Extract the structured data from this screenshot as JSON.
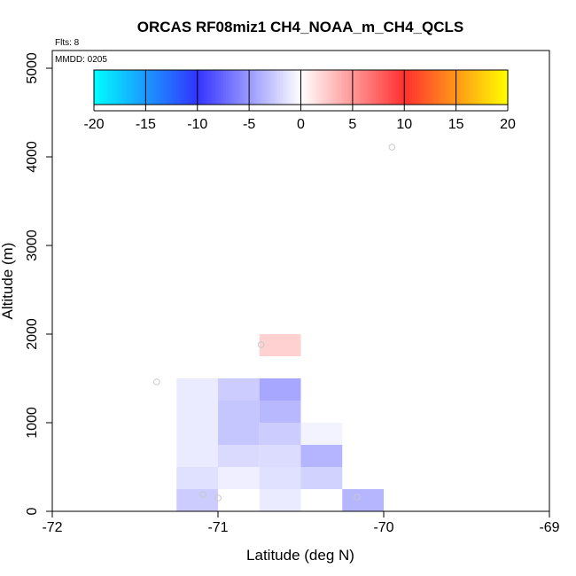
{
  "chart_data": {
    "type": "heatmap",
    "title": "ORCAS RF08miz1 CH4_NOAA_m_CH4_QCLS",
    "flights_label": "Flts: 8",
    "date_label": "MMDD: 0205",
    "xlabel": "Latitude (deg N)",
    "ylabel": "Altitude (m)",
    "xlim": [
      -72,
      -69
    ],
    "ylim": [
      0,
      5200
    ],
    "xticks": [
      -72,
      -71,
      -70,
      -69
    ],
    "xtick_labels": [
      "-72",
      "-71",
      "-70",
      "-69"
    ],
    "yticks": [
      0,
      1000,
      2000,
      3000,
      4000,
      5000
    ],
    "ytick_labels": [
      "0",
      "1000",
      "2000",
      "3000",
      "4000",
      "5000"
    ],
    "colorbar": {
      "range": [
        -20,
        20
      ],
      "ticks": [
        -20,
        -15,
        -10,
        -5,
        0,
        5,
        10,
        15,
        20
      ],
      "tick_labels": [
        "-20",
        "-15",
        "-10",
        "-5",
        "0",
        "5",
        "10",
        "15",
        "20"
      ]
    },
    "cells": [
      {
        "x0": -71.25,
        "x1": -71.0,
        "y0": 0,
        "y1": 250,
        "value": -2.5
      },
      {
        "x0": -71.25,
        "x1": -71.0,
        "y0": 250,
        "y1": 500,
        "value": -1.5
      },
      {
        "x0": -71.25,
        "x1": -71.0,
        "y0": 500,
        "y1": 1000,
        "value": -1.0
      },
      {
        "x0": -71.25,
        "x1": -71.0,
        "y0": 1000,
        "y1": 1500,
        "value": -1.0
      },
      {
        "x0": -71.0,
        "x1": -70.75,
        "y0": 0,
        "y1": 250,
        "value": 0.0
      },
      {
        "x0": -71.0,
        "x1": -70.75,
        "y0": 250,
        "y1": 500,
        "value": -0.8
      },
      {
        "x0": -71.0,
        "x1": -70.75,
        "y0": 500,
        "y1": 750,
        "value": -1.8
      },
      {
        "x0": -71.0,
        "x1": -70.75,
        "y0": 750,
        "y1": 1250,
        "value": -2.8
      },
      {
        "x0": -71.0,
        "x1": -70.75,
        "y0": 1250,
        "y1": 1500,
        "value": -2.5
      },
      {
        "x0": -70.75,
        "x1": -70.5,
        "y0": 0,
        "y1": 250,
        "value": -1.0
      },
      {
        "x0": -70.75,
        "x1": -70.5,
        "y0": 250,
        "y1": 500,
        "value": -1.5
      },
      {
        "x0": -70.75,
        "x1": -70.5,
        "y0": 500,
        "y1": 750,
        "value": -1.7
      },
      {
        "x0": -70.75,
        "x1": -70.5,
        "y0": 750,
        "y1": 1000,
        "value": -2.5
      },
      {
        "x0": -70.75,
        "x1": -70.5,
        "y0": 1000,
        "y1": 1250,
        "value": -3.5
      },
      {
        "x0": -70.75,
        "x1": -70.5,
        "y0": 1250,
        "y1": 1500,
        "value": -4.3
      },
      {
        "x0": -70.75,
        "x1": -70.5,
        "y0": 1750,
        "y1": 2000,
        "value": 2.2
      },
      {
        "x0": -70.5,
        "x1": -70.25,
        "y0": 250,
        "y1": 500,
        "value": -2.2
      },
      {
        "x0": -70.5,
        "x1": -70.25,
        "y0": 500,
        "y1": 750,
        "value": -3.7
      },
      {
        "x0": -70.5,
        "x1": -70.25,
        "y0": 750,
        "y1": 1000,
        "value": -0.6
      },
      {
        "x0": -70.25,
        "x1": -70.0,
        "y0": 0,
        "y1": 250,
        "value": -3.6
      }
    ],
    "points": [
      {
        "x": -71.37,
        "y": 1460
      },
      {
        "x": -71.09,
        "y": 190
      },
      {
        "x": -71.0,
        "y": 150
      },
      {
        "x": -70.74,
        "y": 1880
      },
      {
        "x": -70.16,
        "y": 160
      },
      {
        "x": -69.95,
        "y": 4110
      }
    ]
  },
  "colors": {
    "axis": "#000000",
    "point_stroke": "#c8c8c8"
  }
}
